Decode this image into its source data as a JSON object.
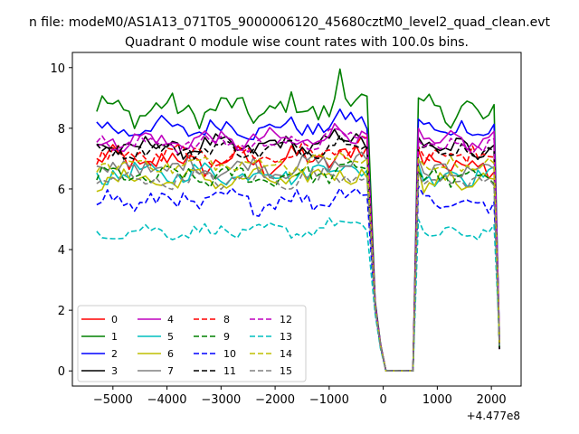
{
  "figure": {
    "suptitle": "n file: modeM0/AS1A13_071T05_9000006120_45680cztM0_level2_quad_clean.evt",
    "title": "Quadrant 0 module wise count rates with 100.0s bins."
  },
  "chart_data": {
    "type": "line",
    "title": "Quadrant 0 module wise count rates with 100.0s bins.",
    "xlabel": "",
    "ylabel": "",
    "x_offset_label": "+4.477e8",
    "xlim": [
      -5750,
      2550
    ],
    "ylim": [
      -0.5,
      10.5
    ],
    "x_ticks": [
      -5000,
      -4000,
      -3000,
      -2000,
      -1000,
      0,
      1000,
      2000
    ],
    "x_tick_labels": [
      "−5000",
      "−4000",
      "−3000",
      "−2000",
      "−1000",
      "0",
      "1000",
      "2000"
    ],
    "y_ticks": [
      0,
      2,
      4,
      6,
      8,
      10
    ],
    "y_tick_labels": [
      "0",
      "2",
      "4",
      "6",
      "8",
      "10"
    ],
    "grid": false,
    "legend_position": "lower-left",
    "legend_columns": 4,
    "shape": {
      "x_start": -5300,
      "x_step": 100,
      "points_before_gap": 51,
      "drop_x": [
        -150,
        -50,
        50
      ],
      "drop_values": [
        2.3,
        0.9,
        0.0
      ],
      "gap_x": [
        150,
        250,
        350,
        450,
        550
      ],
      "rise_x": 650,
      "x_after": [
        750,
        850,
        950,
        1050,
        1150,
        1250,
        1350,
        1450,
        1550,
        1650,
        1750,
        1850,
        1950,
        2050,
        2150
      ]
    },
    "series": [
      {
        "name": "0",
        "color": "#ff0000",
        "style": "solid",
        "level": 6.9,
        "amp": 0.45,
        "rise": 7.3
      },
      {
        "name": "1",
        "color": "#008000",
        "style": "solid",
        "level": 8.6,
        "amp": 0.5,
        "rise": 9.0
      },
      {
        "name": "2",
        "color": "#0000ff",
        "style": "solid",
        "level": 8.0,
        "amp": 0.35,
        "rise": 8.3
      },
      {
        "name": "3",
        "color": "#000000",
        "style": "solid",
        "level": 7.4,
        "amp": 0.35,
        "rise": 7.7
      },
      {
        "name": "4",
        "color": "#bf00bf",
        "style": "solid",
        "level": 7.6,
        "amp": 0.35,
        "rise": 8.0
      },
      {
        "name": "5",
        "color": "#00bfbf",
        "style": "solid",
        "level": 6.5,
        "amp": 0.35,
        "rise": 6.8
      },
      {
        "name": "6",
        "color": "#bfbf00",
        "style": "solid",
        "level": 6.3,
        "amp": 0.35,
        "rise": 6.7
      },
      {
        "name": "7",
        "color": "#808080",
        "style": "solid",
        "level": 6.7,
        "amp": 0.35,
        "rise": 7.0
      },
      {
        "name": "8",
        "color": "#ff0000",
        "style": "dashed",
        "level": 7.1,
        "amp": 0.35,
        "rise": 7.4
      },
      {
        "name": "9",
        "color": "#008000",
        "style": "dashed",
        "level": 6.4,
        "amp": 0.35,
        "rise": 6.6
      },
      {
        "name": "10",
        "color": "#0000ff",
        "style": "dashed",
        "level": 5.6,
        "amp": 0.4,
        "rise": 6.1
      },
      {
        "name": "11",
        "color": "#000000",
        "style": "dashed",
        "level": 7.3,
        "amp": 0.3,
        "rise": 7.4
      },
      {
        "name": "12",
        "color": "#bf00bf",
        "style": "dashed",
        "level": 7.5,
        "amp": 0.3,
        "rise": 7.6
      },
      {
        "name": "13",
        "color": "#00bfbf",
        "style": "dashed",
        "level": 4.6,
        "amp": 0.25,
        "rise": 5.0
      },
      {
        "name": "14",
        "color": "#bfbf00",
        "style": "dashed",
        "level": 6.8,
        "amp": 0.3,
        "rise": 7.0
      },
      {
        "name": "15",
        "color": "#808080",
        "style": "dashed",
        "level": 6.3,
        "amp": 0.3,
        "rise": 6.5
      }
    ]
  }
}
